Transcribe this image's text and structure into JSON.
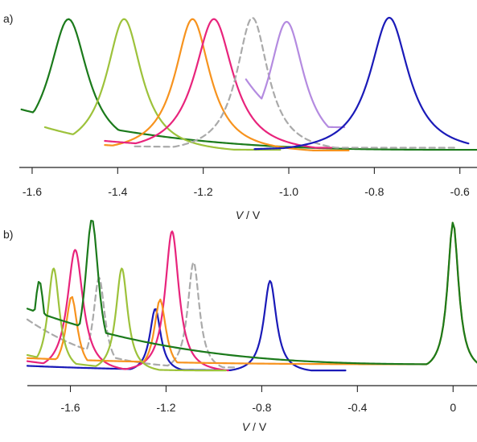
{
  "chart_data": [
    {
      "panel_label": "a)",
      "type": "line",
      "xlabel_italic": "V",
      "xlabel_unit": " / V",
      "xlim": [
        -1.63,
        -0.56
      ],
      "ylim": [
        0,
        1
      ],
      "xticks": [
        -1.6,
        -1.4,
        -1.2,
        -1.0,
        -0.8,
        -0.6
      ],
      "xtick_labels": [
        "-1.6",
        "-1.4",
        "-1.2",
        "-1.0",
        "-0.8",
        "-0.6"
      ],
      "yticks_shown": false,
      "legend": "none",
      "series": [
        {
          "color": "#1b7a1b",
          "dashed": false,
          "x_range": [
            -1.625,
            -0.56
          ],
          "base_left": 0.33,
          "base_right": 0.035,
          "peaks": [
            {
              "x": -1.515,
              "h": 0.99,
              "w": 0.055
            }
          ]
        },
        {
          "color": "#9dc23b",
          "dashed": false,
          "x_range": [
            -1.57,
            -1.02
          ],
          "base_left": 0.2,
          "base_right": 0.035,
          "peaks": [
            {
              "x": -1.385,
              "h": 0.99,
              "w": 0.05
            }
          ]
        },
        {
          "color": "#f7931e",
          "dashed": false,
          "x_range": [
            -1.43,
            -0.86
          ],
          "base_left": 0.07,
          "base_right": 0.03,
          "peaks": [
            {
              "x": -1.225,
              "h": 0.99,
              "w": 0.05
            }
          ]
        },
        {
          "color": "#e8247c",
          "dashed": false,
          "x_range": [
            -1.43,
            -0.9
          ],
          "base_left": 0.1,
          "base_right": 0.05,
          "peaks": [
            {
              "x": -1.175,
              "h": 0.99,
              "w": 0.055
            }
          ]
        },
        {
          "color": "#aaaaaa",
          "dashed": true,
          "x_range": [
            -1.36,
            -0.61
          ],
          "base_left": 0.06,
          "base_right": 0.05,
          "peaks": [
            {
              "x": -1.085,
              "h": 1.0,
              "w": 0.045
            }
          ]
        },
        {
          "color": "#b48be0",
          "dashed": false,
          "x_range": [
            -1.1,
            -0.87
          ],
          "base_left": 0.55,
          "base_right": 0.2,
          "peaks": [
            {
              "x": -1.005,
              "h": 0.97,
              "w": 0.05
            }
          ]
        },
        {
          "color": "#1a1ab8",
          "dashed": false,
          "x_range": [
            -1.08,
            -0.58
          ],
          "base_left": 0.04,
          "base_right": 0.06,
          "peaks": [
            {
              "x": -0.765,
              "h": 1.0,
              "w": 0.055
            }
          ]
        }
      ]
    },
    {
      "panel_label": "b)",
      "type": "line",
      "xlabel_italic": "V",
      "xlabel_unit": " / V",
      "xlim": [
        -1.78,
        0.1
      ],
      "ylim": [
        0,
        1
      ],
      "xticks": [
        -1.6,
        -1.2,
        -0.8,
        -0.4,
        0
      ],
      "xtick_labels": [
        "-1.6",
        "-1.2",
        "-0.8",
        "-0.4",
        "0"
      ],
      "yticks_shown": false,
      "legend": "none",
      "series": [
        {
          "color": "#aaaaaa",
          "dashed": true,
          "x_range": [
            -1.78,
            -0.9
          ],
          "base_left": 0.35,
          "base_right": 0.04,
          "peaks": [
            {
              "x": -1.48,
              "h": 0.62,
              "w": 0.03
            },
            {
              "x": -1.085,
              "h": 0.72,
              "w": 0.03
            }
          ]
        },
        {
          "color": "#1a1ab8",
          "dashed": false,
          "x_range": [
            -1.78,
            -0.45
          ],
          "base_left": 0.05,
          "base_right": 0.02,
          "peaks": [
            {
              "x": -1.245,
              "h": 0.42,
              "w": 0.028
            },
            {
              "x": -0.765,
              "h": 0.6,
              "w": 0.032
            }
          ]
        },
        {
          "color": "#e8247c",
          "dashed": false,
          "x_range": [
            -1.78,
            -0.94
          ],
          "base_left": 0.08,
          "base_right": 0.02,
          "peaks": [
            {
              "x": -1.58,
              "h": 0.8,
              "w": 0.04
            },
            {
              "x": -1.175,
              "h": 0.92,
              "w": 0.035
            }
          ]
        },
        {
          "color": "#f7931e",
          "dashed": false,
          "x_range": [
            -1.78,
            0.1
          ],
          "base_left": 0.1,
          "base_right": 0.06,
          "peaks": [
            {
              "x": -1.595,
              "h": 0.5,
              "w": 0.03
            },
            {
              "x": -1.225,
              "h": 0.48,
              "w": 0.03
            },
            {
              "x": 0.0,
              "h": 0.98,
              "w": 0.028
            }
          ]
        },
        {
          "color": "#9dc23b",
          "dashed": false,
          "x_range": [
            -1.78,
            -0.95
          ],
          "base_left": 0.12,
          "base_right": 0.02,
          "peaks": [
            {
              "x": -1.67,
              "h": 0.68,
              "w": 0.03
            },
            {
              "x": -1.385,
              "h": 0.68,
              "w": 0.03
            }
          ]
        },
        {
          "color": "#1b7a1b",
          "dashed": false,
          "x_range": [
            -1.78,
            0.1
          ],
          "base_left": 0.42,
          "base_right": 0.06,
          "peaks": [
            {
              "x": -1.73,
              "h": 0.6,
              "w": 0.028
            },
            {
              "x": -1.51,
              "h": 1.0,
              "w": 0.035
            },
            {
              "x": 0.0,
              "h": 0.98,
              "w": 0.028
            }
          ]
        }
      ]
    }
  ]
}
